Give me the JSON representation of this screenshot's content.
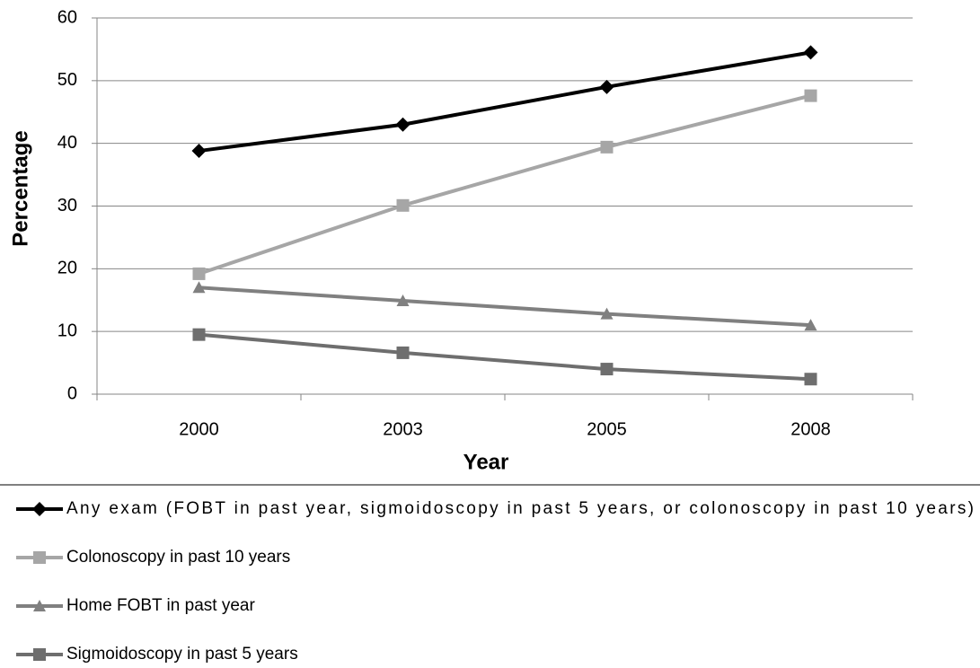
{
  "chart_data": {
    "type": "line",
    "x_label": "Year",
    "y_label": "Percentage",
    "categories": [
      "2000",
      "2003",
      "2005",
      "2008"
    ],
    "ylim": [
      0,
      60
    ],
    "yticks": [
      0,
      10,
      20,
      30,
      40,
      50,
      60
    ],
    "grid": true,
    "legend_position": "bottom",
    "series": [
      {
        "name": "Any exam (FOBT in past year, sigmoidoscopy in past 5 years, or colonoscopy in past 10 years)",
        "color": "#000000",
        "marker": "diamond",
        "values": [
          38.8,
          43.0,
          49.0,
          54.5
        ]
      },
      {
        "name": "Colonoscopy in past 10 years",
        "color": "#a6a6a6",
        "marker": "square",
        "values": [
          19.2,
          30.1,
          39.4,
          47.6
        ]
      },
      {
        "name": "Home FOBT in past year",
        "color": "#808080",
        "marker": "triangle",
        "values": [
          17.0,
          14.9,
          12.8,
          11.0
        ]
      },
      {
        "name": "Sigmoidoscopy in past 5 years",
        "color": "#6e6e6e",
        "marker": "square",
        "values": [
          9.5,
          6.6,
          4.0,
          2.4
        ]
      }
    ]
  }
}
